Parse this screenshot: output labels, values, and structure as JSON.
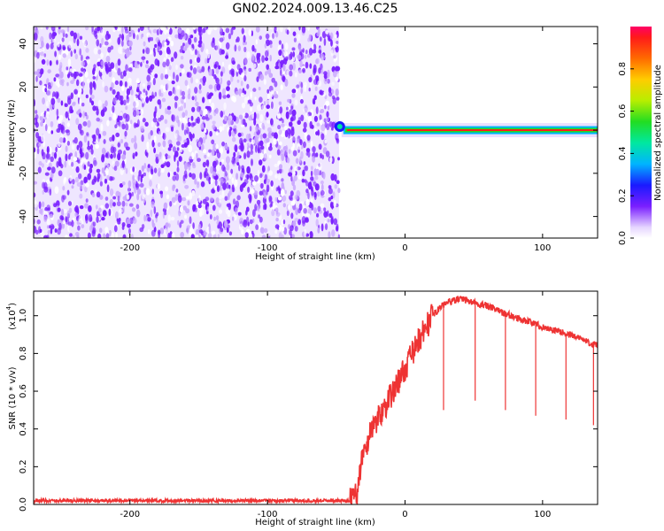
{
  "title": "GN02.2024.009.13.46.C25",
  "colors": {
    "trace": "#ee3333",
    "scatter_violet": "#7a1fff",
    "scatter_light": "#c9a6ff"
  },
  "chart_data": [
    {
      "type": "heatmap",
      "xlabel": "Height of straight line (km)",
      "ylabel": "Frequency (Hz)",
      "xlim": [
        -270,
        140
      ],
      "ylim": [
        -50,
        48
      ],
      "xticks": [
        -200,
        -100,
        0,
        100
      ],
      "xtick_labels": [
        "-200",
        "-100",
        "0",
        "100"
      ],
      "yticks": [
        -40,
        -20,
        0,
        20,
        40
      ],
      "ytick_labels": [
        "-40",
        "-20",
        "0",
        "20",
        "40"
      ],
      "noise_region_x": [
        -270,
        -48
      ],
      "signal_band_x": [
        -50,
        140
      ],
      "signal_band_freq": 0,
      "colorbar": {
        "label": "Normalized spectral amplitude",
        "range": [
          0,
          1
        ],
        "ticks": [
          0.0,
          0.2,
          0.4,
          0.6,
          0.8
        ],
        "tick_labels": [
          "0.0",
          "0.2",
          "0.4",
          "0.6",
          "0.8"
        ]
      }
    },
    {
      "type": "line",
      "xlabel": "Height of straight line (km)",
      "ylabel": "SNR (10 * v/v)",
      "yscale_label": "(x10",
      "yscale_exp": "4",
      "yscale_close": ")",
      "xlim": [
        -270,
        140
      ],
      "ylim": [
        0,
        1.13
      ],
      "xticks": [
        -200,
        -100,
        0,
        100
      ],
      "xtick_labels": [
        "-200",
        "-100",
        "0",
        "100"
      ],
      "yticks": [
        0.0,
        0.2,
        0.4,
        0.6,
        0.8,
        1.0
      ],
      "ytick_labels": [
        "0.0",
        "0.2",
        "0.4",
        "0.6",
        "0.8",
        "1.0"
      ],
      "x": [
        -270,
        -250,
        -200,
        -150,
        -100,
        -60,
        -40,
        -35,
        -32,
        -28,
        -25,
        -20,
        -10,
        0,
        10,
        20,
        25,
        30,
        35,
        40,
        45,
        50,
        60,
        70,
        80,
        90,
        100,
        110,
        120,
        130,
        140
      ],
      "y": [
        0.02,
        0.02,
        0.02,
        0.02,
        0.02,
        0.02,
        0.02,
        0.06,
        0.22,
        0.3,
        0.4,
        0.45,
        0.58,
        0.72,
        0.87,
        1.0,
        1.04,
        1.07,
        1.08,
        1.09,
        1.08,
        1.07,
        1.05,
        1.02,
        0.99,
        0.97,
        0.94,
        0.92,
        0.9,
        0.87,
        0.84
      ],
      "dropouts": [
        {
          "x": 28,
          "y": 0.5
        },
        {
          "x": 51,
          "y": 0.55
        },
        {
          "x": 73,
          "y": 0.5
        },
        {
          "x": 95,
          "y": 0.47
        },
        {
          "x": 117,
          "y": 0.45
        },
        {
          "x": 137,
          "y": 0.42
        }
      ]
    }
  ]
}
